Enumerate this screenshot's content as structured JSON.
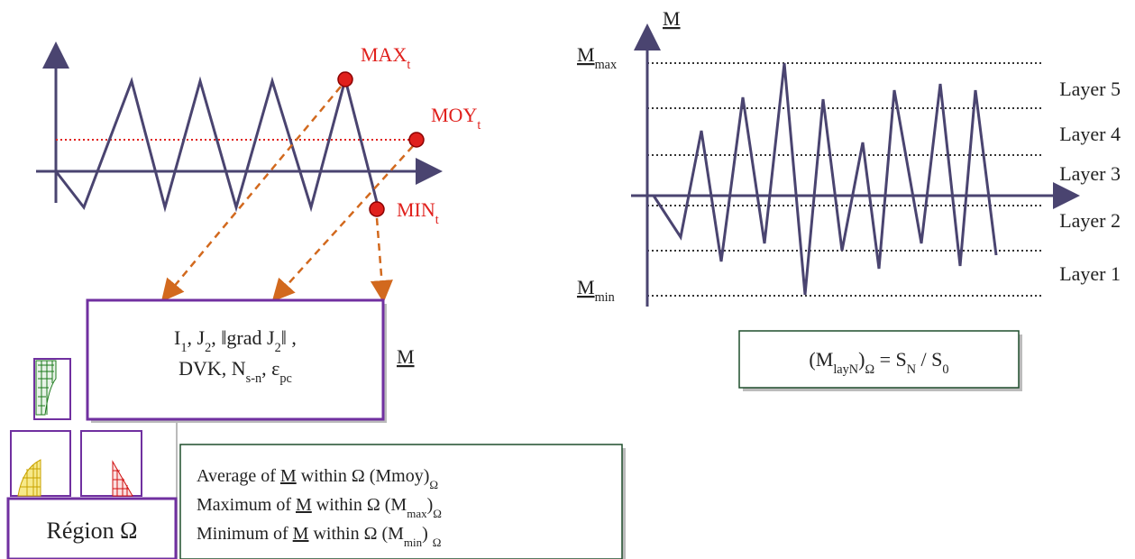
{
  "left_plot": {
    "max_label": [
      "MAX",
      {
        "sub": "t"
      }
    ],
    "moy_label": [
      "MOY",
      {
        "sub": "t"
      }
    ],
    "min_label": [
      "MIN",
      {
        "sub": "t"
      }
    ]
  },
  "metrics_box": {
    "lines": [
      [
        "I",
        {
          "sub": "1"
        },
        ", J",
        {
          "sub": "2"
        },
        ", ‖grad J",
        {
          "sub": "2"
        },
        "‖ ,"
      ],
      [
        "DVK, N",
        {
          "sub": "s-n"
        },
        ", ε",
        {
          "sub": "pc"
        }
      ]
    ]
  },
  "metric_symbol": [
    {
      "u": "M"
    }
  ],
  "region_box": "Région Ω",
  "summary_box": {
    "lines": [
      [
        "Average of ",
        {
          "u": "M"
        },
        " within Ω   (Mmoy)",
        {
          "sub": "Ω"
        }
      ],
      [
        "Maximum of ",
        {
          "u": "M"
        },
        " within Ω (M",
        {
          "sub": "max"
        },
        ")",
        {
          "sub": "Ω"
        }
      ],
      [
        "Minimum of ",
        {
          "u": "M"
        },
        " within Ω  (M",
        {
          "sub": "min"
        },
        ") ",
        {
          "sub": "Ω"
        }
      ]
    ]
  },
  "right_plot": {
    "axis_label": [
      {
        "u": "M"
      }
    ],
    "max_label": [
      {
        "u": "M"
      },
      {
        "sub": "max"
      }
    ],
    "min_label": [
      {
        "u": "M"
      },
      {
        "sub": "min"
      }
    ],
    "layers": [
      "Layer 5",
      "Layer 4",
      "Layer 3",
      "Layer 2",
      "Layer 1"
    ]
  },
  "formula_box": [
    "(M",
    {
      "sub": "layN"
    },
    ")",
    {
      "sub": "Ω"
    },
    "  =  S",
    {
      "sub": "N"
    },
    " / S",
    {
      "sub": "0"
    }
  ]
}
